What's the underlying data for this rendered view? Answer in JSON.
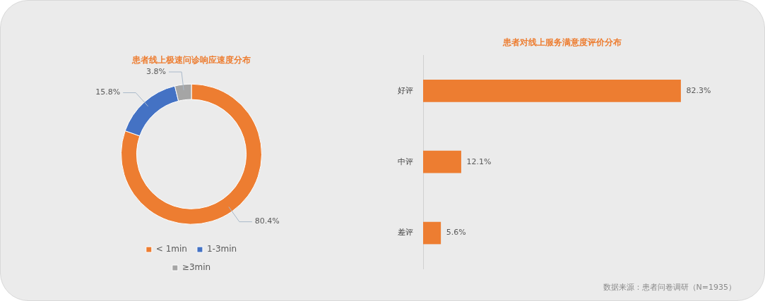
{
  "chart_data": [
    {
      "type": "donut",
      "title": "患者线上极速问诊响应速度分布",
      "categories": [
        "< 1min",
        "1-3min",
        "≥3min"
      ],
      "values": [
        80.4,
        15.8,
        3.8
      ],
      "colors": [
        "#ed7d31",
        "#4472c4",
        "#a5a5a5"
      ],
      "value_labels": [
        "80.4%",
        "15.8%",
        "3.8%"
      ],
      "legend": "bottom"
    },
    {
      "type": "bar",
      "orientation": "horizontal",
      "title": "患者对线上服务满意度评价分布",
      "categories": [
        "好评",
        "中评",
        "差评"
      ],
      "values": [
        82.3,
        12.1,
        5.6
      ],
      "color": "#ed7d31",
      "value_labels": [
        "82.3%",
        "12.1%",
        "5.6%"
      ],
      "legend": false,
      "grid": false,
      "tick_labels": "y",
      "annotations": [
        "数据来源：患者问卷调研（N=1935）"
      ]
    }
  ]
}
